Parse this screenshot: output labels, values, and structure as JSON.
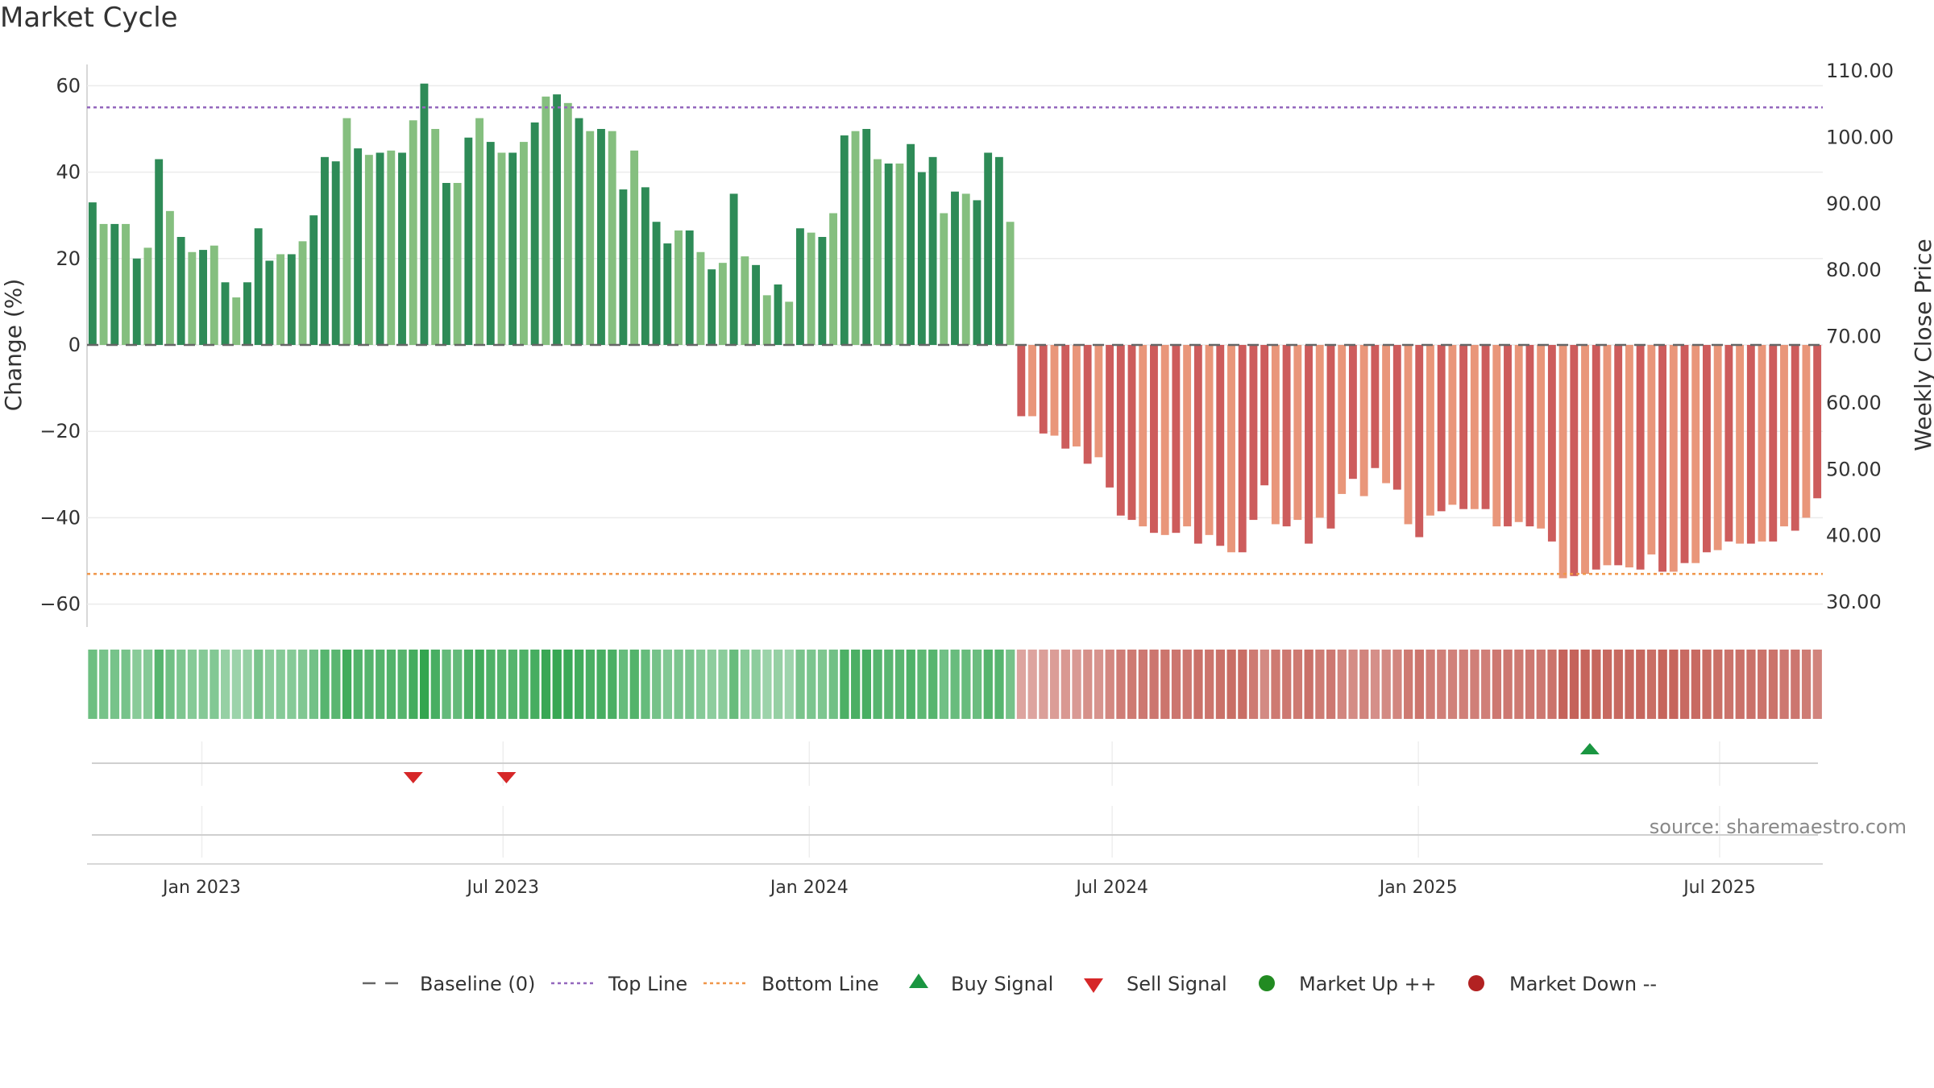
{
  "title": "Market Cycle",
  "source": "source: sharemaestro.com",
  "chart_data": {
    "type": "bar",
    "ylabel_left": "Change (%)",
    "ylabel_right": "Weekly Close Price",
    "ylim_left": [
      -65,
      65
    ],
    "ylim_right": [
      25,
      110
    ],
    "yticks_left": [
      "60",
      "40",
      "20",
      "0",
      "−20",
      "−40",
      "−60"
    ],
    "yticks_left_values": [
      60,
      40,
      20,
      0,
      -20,
      -40,
      -60
    ],
    "yticks_right": [
      "110.00",
      "100.00",
      "90.00",
      "80.00",
      "70.00",
      "60.00",
      "50.00",
      "40.00",
      "30.00"
    ],
    "yticks_right_values": [
      110,
      100,
      90,
      80,
      70,
      60,
      50,
      40,
      30
    ],
    "x_start": "2022-10-24",
    "x_end": "2025-09-01",
    "xticks": [
      "Jan 2023",
      "Jul 2023",
      "Jan 2024",
      "Jul 2024",
      "Jan 2025",
      "Jul 2025"
    ],
    "xticks_dates": [
      "2023-01-01",
      "2023-07-01",
      "2024-01-01",
      "2024-07-01",
      "2025-01-01",
      "2025-07-01"
    ],
    "top_line": 55,
    "bottom_line": -53,
    "series": [
      {
        "name": "Change (%)",
        "values": [
          33,
          28,
          28,
          28,
          20,
          22.5,
          43,
          31,
          25,
          21.5,
          22,
          23,
          14.5,
          11,
          14.5,
          27,
          19.5,
          21,
          21,
          24,
          30,
          43.5,
          42.5,
          52.5,
          45.5,
          44,
          44.5,
          45,
          44.5,
          52,
          60.5,
          50,
          37.5,
          37.5,
          48,
          52.5,
          47,
          44.5,
          44.5,
          47,
          51.5,
          57.5,
          58,
          56,
          52.5,
          49.5,
          50,
          49.5,
          36,
          45,
          36.5,
          28.5,
          23.5,
          26.5,
          26.5,
          21.5,
          17.5,
          19,
          35,
          20.5,
          18.5,
          11.5,
          14,
          10,
          27,
          26,
          25,
          30.5,
          48.5,
          49.5,
          50,
          43,
          42,
          42,
          46.5,
          40,
          43.5,
          30.5,
          35.5,
          35,
          33.5,
          44.5,
          43.5,
          28.5,
          -16.5,
          -16.5,
          -20.5,
          -21,
          -24,
          -23.5,
          -27.5,
          -26,
          -33,
          -39.5,
          -40.5,
          -42,
          -43.5,
          -44,
          -43.5,
          -42,
          -46,
          -44,
          -46.5,
          -48,
          -48,
          -40.5,
          -32.5,
          -41.5,
          -42,
          -40.5,
          -46,
          -40,
          -42.5,
          -34.5,
          -31,
          -35,
          -28.5,
          -32,
          -33.5,
          -41.5,
          -44.5,
          -39.5,
          -38.5,
          -37,
          -38,
          -38,
          -38,
          -42,
          -42,
          -41,
          -42,
          -42.5,
          -45.5,
          -54,
          -53.5,
          -53,
          -52,
          -51,
          -51,
          -51.5,
          -52,
          -48.5,
          -52.5,
          -52.5,
          -50.5,
          -50.5,
          -48,
          -47.5,
          -45.5,
          -46,
          -46,
          -45.5,
          -45.5,
          -42,
          -43,
          -40,
          -35.5
        ]
      }
    ],
    "signals": [
      {
        "type": "sell",
        "date": "2023-05-08"
      },
      {
        "type": "sell",
        "date": "2023-07-03"
      },
      {
        "type": "buy",
        "date": "2025-04-14"
      }
    ],
    "colors": {
      "up_dark": "#2e8b57",
      "up_light": "#85bf7f",
      "down_dark": "#cd5c5c",
      "down_light": "#e9967a",
      "top_line": "#9467bd",
      "bottom_line": "#f0964a",
      "buy": "#1a9641",
      "sell": "#d62728",
      "market_up": "#228b22",
      "market_down": "#b22222"
    },
    "legend": [
      {
        "label": "Baseline (0)",
        "icon": "baseline-dash"
      },
      {
        "label": "Top Line",
        "icon": "top-line-dotted"
      },
      {
        "label": "Bottom Line",
        "icon": "bottom-line-dotted"
      },
      {
        "label": "Buy Signal",
        "icon": "triangle-up"
      },
      {
        "label": "Sell Signal",
        "icon": "triangle-down"
      },
      {
        "label": "Market Up ++",
        "icon": "circle-green"
      },
      {
        "label": "Market Down --",
        "icon": "circle-red"
      }
    ],
    "legend_position": "bottom-center",
    "grid": true
  }
}
